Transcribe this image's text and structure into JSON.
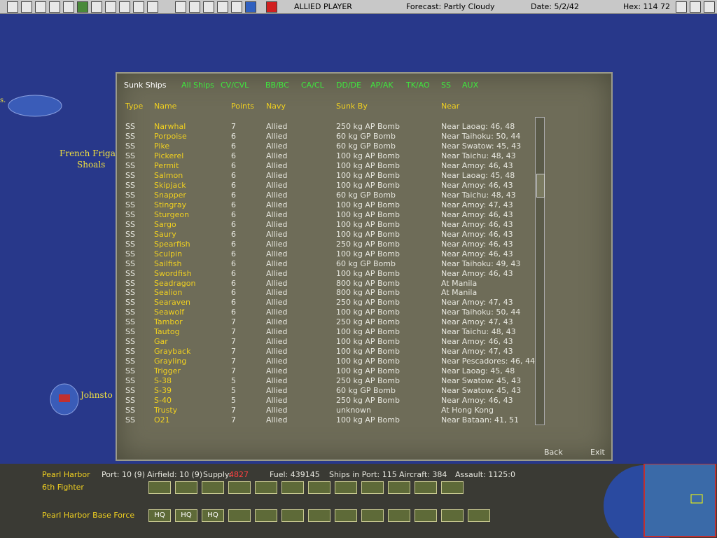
{
  "top_bar": {
    "player": "ALLIED PLAYER",
    "forecast": "Forecast: Partly Cloudy",
    "date": "Date: 5/2/42",
    "hex": "Hex: 114 72"
  },
  "map_labels": {
    "island1": "s.",
    "frigate1": "French Frigat",
    "frigate2": "Shoals",
    "johnston": "Johnsto"
  },
  "dialog": {
    "tabs": [
      "Sunk Ships",
      "All Ships",
      "CV/CVL",
      "BB/BC",
      "CA/CL",
      "DD/DE",
      "AP/AK",
      "TK/AO",
      "SS",
      "AUX"
    ],
    "columns": [
      "Type",
      "Name",
      "Points",
      "Navy",
      "Sunk By",
      "Near"
    ],
    "rows": [
      [
        "SS",
        "Narwhal",
        7,
        "Allied",
        "250 kg AP Bomb",
        "Near Laoag: 46, 48"
      ],
      [
        "SS",
        "Porpoise",
        6,
        "Allied",
        "60 kg GP Bomb",
        "Near Taihoku: 50, 44"
      ],
      [
        "SS",
        "Pike",
        6,
        "Allied",
        "60 kg GP Bomb",
        "Near Swatow: 45, 43"
      ],
      [
        "SS",
        "Pickerel",
        6,
        "Allied",
        "100 kg AP Bomb",
        "Near Taichu: 48, 43"
      ],
      [
        "SS",
        "Permit",
        6,
        "Allied",
        "100 kg AP Bomb",
        "Near Amoy: 46, 43"
      ],
      [
        "SS",
        "Salmon",
        6,
        "Allied",
        "100 kg AP Bomb",
        "Near Laoag: 45, 48"
      ],
      [
        "SS",
        "Skipjack",
        6,
        "Allied",
        "100 kg AP Bomb",
        "Near Amoy: 46, 43"
      ],
      [
        "SS",
        "Snapper",
        6,
        "Allied",
        "60 kg GP Bomb",
        "Near Taichu: 48, 43"
      ],
      [
        "SS",
        "Stingray",
        6,
        "Allied",
        "100 kg AP Bomb",
        "Near Amoy: 47, 43"
      ],
      [
        "SS",
        "Sturgeon",
        6,
        "Allied",
        "100 kg AP Bomb",
        "Near Amoy: 46, 43"
      ],
      [
        "SS",
        "Sargo",
        6,
        "Allied",
        "100 kg AP Bomb",
        "Near Amoy: 46, 43"
      ],
      [
        "SS",
        "Saury",
        6,
        "Allied",
        "100 kg AP Bomb",
        "Near Amoy: 46, 43"
      ],
      [
        "SS",
        "Spearfish",
        6,
        "Allied",
        "250 kg AP Bomb",
        "Near Amoy: 46, 43"
      ],
      [
        "SS",
        "Sculpin",
        6,
        "Allied",
        "100 kg AP Bomb",
        "Near Amoy: 46, 43"
      ],
      [
        "SS",
        "Sailfish",
        6,
        "Allied",
        "60 kg GP Bomb",
        "Near Taihoku: 49, 43"
      ],
      [
        "SS",
        "Swordfish",
        6,
        "Allied",
        "100 kg AP Bomb",
        "Near Amoy: 46, 43"
      ],
      [
        "SS",
        "Seadragon",
        6,
        "Allied",
        "800 kg AP Bomb",
        "At Manila"
      ],
      [
        "SS",
        "Sealion",
        6,
        "Allied",
        "800 kg AP Bomb",
        "At Manila"
      ],
      [
        "SS",
        "Searaven",
        6,
        "Allied",
        "250 kg AP Bomb",
        "Near Amoy: 47, 43"
      ],
      [
        "SS",
        "Seawolf",
        6,
        "Allied",
        "100 kg AP Bomb",
        "Near Taihoku: 50, 44"
      ],
      [
        "SS",
        "Tambor",
        7,
        "Allied",
        "250 kg AP Bomb",
        "Near Amoy: 47, 43"
      ],
      [
        "SS",
        "Tautog",
        7,
        "Allied",
        "100 kg AP Bomb",
        "Near Taichu: 48, 43"
      ],
      [
        "SS",
        "Gar",
        7,
        "Allied",
        "100 kg AP Bomb",
        "Near Amoy: 46, 43"
      ],
      [
        "SS",
        "Grayback",
        7,
        "Allied",
        "100 kg AP Bomb",
        "Near Amoy: 47, 43"
      ],
      [
        "SS",
        "Grayling",
        7,
        "Allied",
        "100 kg AP Bomb",
        "Near Pescadores: 46, 44"
      ],
      [
        "SS",
        "Trigger",
        7,
        "Allied",
        "100 kg AP Bomb",
        "Near Laoag: 45, 48"
      ],
      [
        "SS",
        "S-38",
        5,
        "Allied",
        "250 kg AP Bomb",
        "Near Swatow: 45, 43"
      ],
      [
        "SS",
        "S-39",
        5,
        "Allied",
        "60 kg GP Bomb",
        "Near Swatow: 45, 43"
      ],
      [
        "SS",
        "S-40",
        5,
        "Allied",
        "250 kg AP Bomb",
        "Near Amoy: 46, 43"
      ],
      [
        "SS",
        "Trusty",
        7,
        "Allied",
        "unknown",
        "At Hong Kong"
      ],
      [
        "SS",
        "O21",
        7,
        "Allied",
        "100 kg AP Bomb",
        "Near Bataan: 41, 51"
      ]
    ],
    "buttons": {
      "back": "Back",
      "exit": "Exit"
    }
  },
  "bottom_panel": {
    "base": "Pearl Harbor",
    "port": "Port: 10 (9)",
    "airfield": "Airfield: 10 (9)",
    "supply_label": "Supply:",
    "supply": "4827",
    "fuel": "Fuel: 439145",
    "ships": "Ships in Port: 115",
    "aircraft": "Aircraft: 384",
    "assault": "Assault: 1125:0",
    "air_unit": "6th Fighter",
    "land_unit": "Pearl Harbor Base Force",
    "hq_buttons": [
      "HQ",
      "HQ",
      "HQ"
    ]
  }
}
